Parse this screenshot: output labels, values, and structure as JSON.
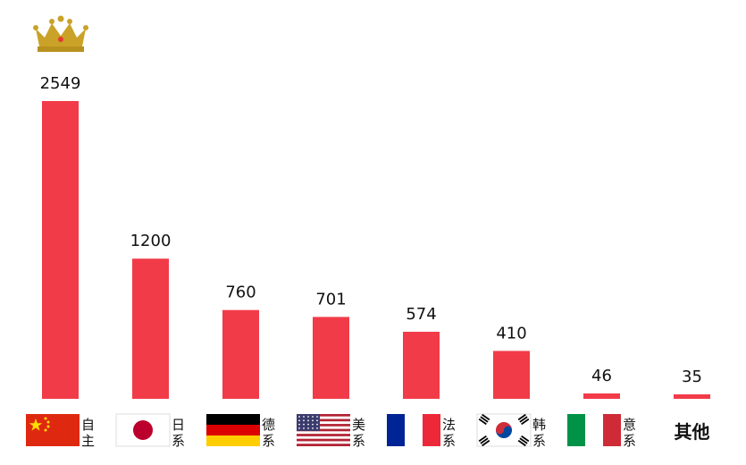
{
  "colors": {
    "bar": "#f23b48",
    "crown": "#c9a227"
  },
  "chart_data": {
    "type": "bar",
    "title": "",
    "xlabel": "",
    "ylabel": "",
    "ylim": [
      0,
      2549
    ],
    "grid": false,
    "legend": "none",
    "categories": [
      "自主",
      "日系",
      "德系",
      "美系",
      "法系",
      "韩系",
      "意系",
      "其他"
    ],
    "values": [
      2549,
      1200,
      760,
      701,
      574,
      410,
      46,
      35
    ],
    "category_icons": [
      "china-flag-icon",
      "japan-flag-icon",
      "germany-flag-icon",
      "usa-flag-icon",
      "france-flag-icon",
      "korea-flag-icon",
      "italy-flag-icon",
      ""
    ],
    "annotations": [
      "crown-icon above first bar"
    ]
  }
}
